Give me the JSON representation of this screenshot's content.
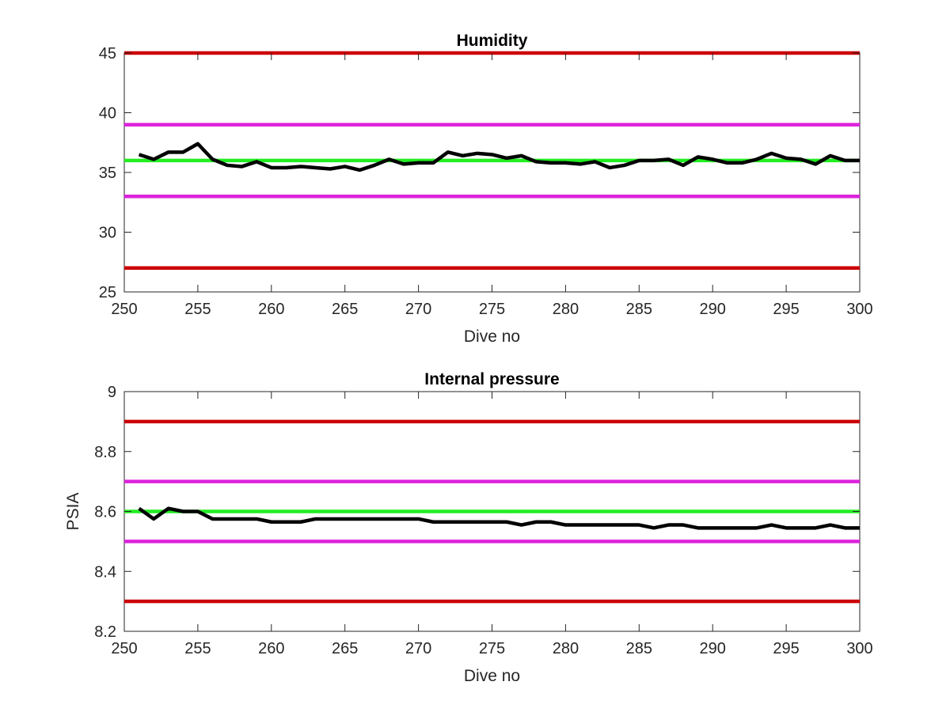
{
  "chart_data": [
    {
      "type": "line",
      "title": "Humidity",
      "xlabel": "Dive no",
      "ylabel": "",
      "xlim": [
        250,
        300
      ],
      "ylim": [
        25,
        45
      ],
      "xticks": [
        "250",
        "255",
        "260",
        "265",
        "270",
        "275",
        "280",
        "285",
        "290",
        "295",
        "300"
      ],
      "yticks": [
        "25",
        "30",
        "35",
        "40",
        "45"
      ],
      "grid": false,
      "reference_lines": [
        {
          "y": 45,
          "color": "#cc0000"
        },
        {
          "y": 39,
          "color": "#dd22dd"
        },
        {
          "y": 36,
          "color": "#22ee22"
        },
        {
          "y": 33,
          "color": "#dd22dd"
        },
        {
          "y": 27,
          "color": "#cc0000"
        }
      ],
      "series": [
        {
          "color": "#000000",
          "x": [
            251,
            252,
            253,
            254,
            255,
            256,
            257,
            258,
            259,
            260,
            261,
            262,
            263,
            264,
            265,
            266,
            267,
            268,
            269,
            270,
            271,
            272,
            273,
            274,
            275,
            276,
            277,
            278,
            279,
            280,
            281,
            282,
            283,
            284,
            285,
            286,
            287,
            288,
            289,
            290,
            291,
            292,
            293,
            294,
            295,
            296,
            297,
            298,
            299,
            300
          ],
          "y": [
            36.5,
            36.1,
            36.7,
            36.7,
            37.4,
            36.1,
            35.6,
            35.5,
            35.9,
            35.4,
            35.4,
            35.5,
            35.4,
            35.3,
            35.5,
            35.2,
            35.6,
            36.1,
            35.7,
            35.8,
            35.8,
            36.7,
            36.4,
            36.6,
            36.5,
            36.2,
            36.4,
            35.9,
            35.8,
            35.8,
            35.7,
            35.9,
            35.4,
            35.6,
            36.0,
            36.0,
            36.1,
            35.6,
            36.3,
            36.1,
            35.8,
            35.8,
            36.1,
            36.6,
            36.2,
            36.1,
            35.7,
            36.4,
            36.0,
            36.0
          ]
        }
      ]
    },
    {
      "type": "line",
      "title": "Internal pressure",
      "xlabel": "Dive no",
      "ylabel": "PSIA",
      "xlim": [
        250,
        300
      ],
      "ylim": [
        8.2,
        9
      ],
      "xticks": [
        "250",
        "255",
        "260",
        "265",
        "270",
        "275",
        "280",
        "285",
        "290",
        "295",
        "300"
      ],
      "yticks": [
        "8.2",
        "8.4",
        "8.6",
        "8.8",
        "9"
      ],
      "grid": false,
      "reference_lines": [
        {
          "y": 8.9,
          "color": "#cc0000"
        },
        {
          "y": 8.7,
          "color": "#dd22dd"
        },
        {
          "y": 8.6,
          "color": "#22ee22"
        },
        {
          "y": 8.5,
          "color": "#dd22dd"
        },
        {
          "y": 8.3,
          "color": "#cc0000"
        }
      ],
      "series": [
        {
          "color": "#000000",
          "x": [
            251,
            252,
            253,
            254,
            255,
            256,
            257,
            258,
            259,
            260,
            261,
            262,
            263,
            264,
            265,
            266,
            267,
            268,
            269,
            270,
            271,
            272,
            273,
            274,
            275,
            276,
            277,
            278,
            279,
            280,
            281,
            282,
            283,
            284,
            285,
            286,
            287,
            288,
            289,
            290,
            291,
            292,
            293,
            294,
            295,
            296,
            297,
            298,
            299,
            300
          ],
          "y": [
            8.61,
            8.575,
            8.61,
            8.6,
            8.6,
            8.575,
            8.575,
            8.575,
            8.575,
            8.565,
            8.565,
            8.565,
            8.575,
            8.575,
            8.575,
            8.575,
            8.575,
            8.575,
            8.575,
            8.575,
            8.565,
            8.565,
            8.565,
            8.565,
            8.565,
            8.565,
            8.555,
            8.565,
            8.565,
            8.555,
            8.555,
            8.555,
            8.555,
            8.555,
            8.555,
            8.545,
            8.555,
            8.555,
            8.545,
            8.545,
            8.545,
            8.545,
            8.545,
            8.555,
            8.545,
            8.545,
            8.545,
            8.555,
            8.545,
            8.545
          ]
        }
      ]
    }
  ]
}
